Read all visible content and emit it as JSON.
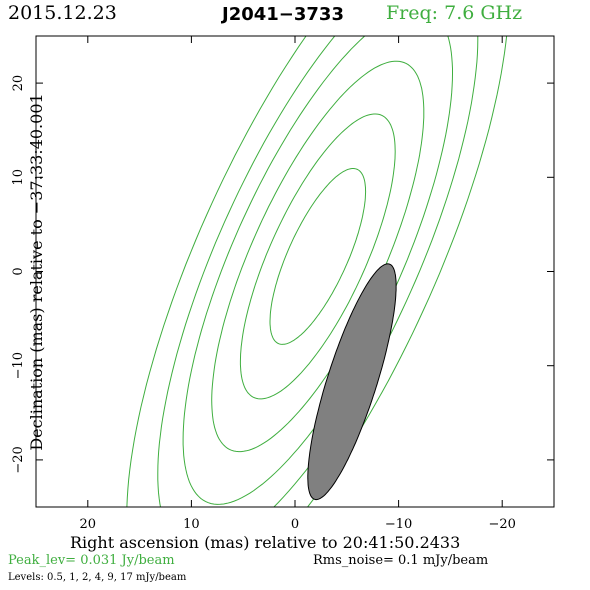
{
  "header": {
    "date": "2015.12.23",
    "source": "J2041−3733",
    "freq": "Freq: 7.6 GHz"
  },
  "chart_data": {
    "type": "contour",
    "xlabel": "Right ascension (mas) relative to 20:41:50.2433",
    "ylabel": "Declination (mas) relative to −37:33:40.001",
    "xlim": [
      25,
      -25
    ],
    "ylim": [
      -25,
      25
    ],
    "x_ticks": [
      20,
      10,
      0,
      -10,
      -20
    ],
    "y_ticks": [
      20,
      10,
      0,
      -10,
      -20
    ],
    "x_tick_labels": [
      "20",
      "10",
      "0",
      "−10",
      "−20"
    ],
    "y_tick_labels": [
      "20",
      "10",
      "0",
      "−10",
      "−20"
    ],
    "grid": false,
    "contour_color": "#3fae3f",
    "beam_color": "#808080",
    "contours": {
      "center": [
        -2.2,
        1.6
      ],
      "minor_axis_ratio": 0.29,
      "position_angle_deg": 158,
      "levels_mJy": [
        0.5,
        1,
        2,
        4,
        9,
        17
      ],
      "semi_major_mas": [
        40,
        33.5,
        28.2,
        22.2,
        16.2,
        10
      ]
    },
    "beam": {
      "center": [
        -5.5,
        -11.7
      ],
      "major_mas": 26,
      "minor_mas": 4.8,
      "position_angle_deg": 164
    }
  },
  "footer": {
    "peak": "Peak_lev=  0.031 Jy/beam",
    "rms": "Rms_noise=   0.1 mJy/beam",
    "levels": "Levels: 0.5,    1,    2,    4,    9,   17 mJy/beam"
  }
}
